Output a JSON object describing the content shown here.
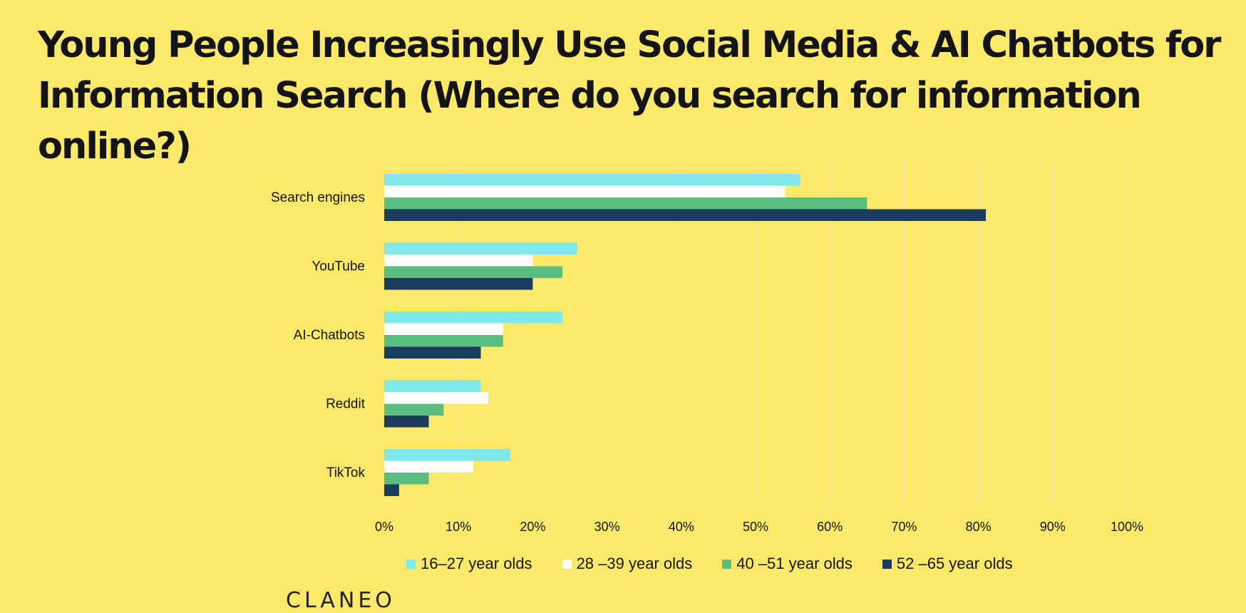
{
  "title": "Young People Increasingly Use Social Media & AI Chatbots for Information Search (Where do you search for information online?)",
  "logo": "CLANEO",
  "colors": {
    "background": "#fce96a",
    "grid": "#e7e7c6",
    "series": [
      "#7ee8ec",
      "#ffffff",
      "#5bbd80",
      "#1d3b5c"
    ]
  },
  "chart_data": {
    "type": "bar",
    "orientation": "horizontal",
    "categories": [
      "Search engines",
      "YouTube",
      "AI-Chatbots",
      "Reddit",
      "TikTok"
    ],
    "series": [
      {
        "name": "16–27 year olds",
        "values": [
          56,
          26,
          24,
          13,
          17
        ]
      },
      {
        "name": "28 –39 year olds",
        "values": [
          54,
          20,
          16,
          14,
          12
        ]
      },
      {
        "name": "40 –51 year olds",
        "values": [
          65,
          24,
          16,
          8,
          6
        ]
      },
      {
        "name": "52 –65 year olds",
        "values": [
          81,
          20,
          13,
          6,
          2
        ]
      }
    ],
    "xticks": [
      "0%",
      "10%",
      "20%",
      "30%",
      "40%",
      "50%",
      "60%",
      "70%",
      "80%",
      "90%",
      "100%"
    ],
    "xlim": [
      0,
      100
    ],
    "grid": true,
    "legend_position": "bottom"
  }
}
